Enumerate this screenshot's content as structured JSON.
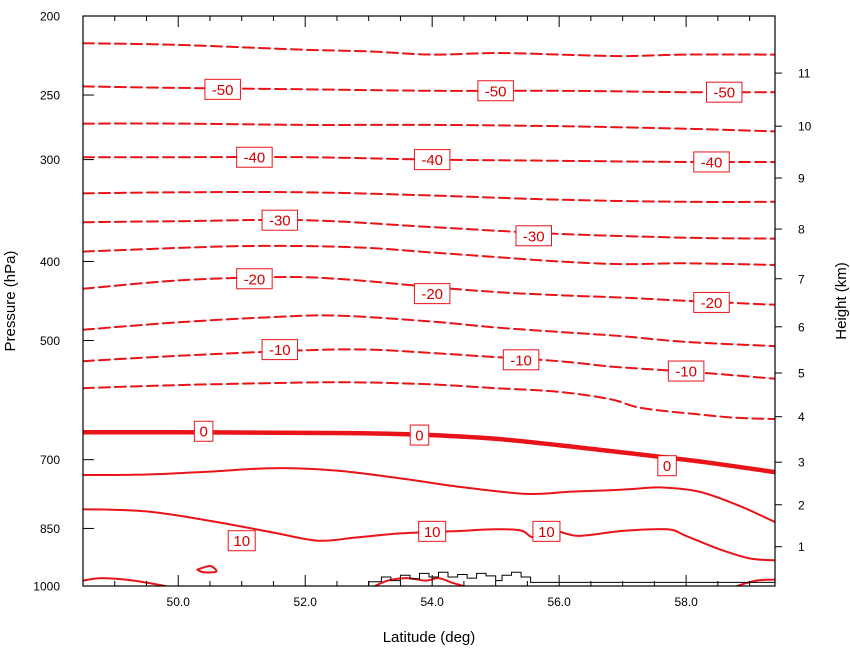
{
  "chart_data": {
    "type": "contour",
    "title": "",
    "xlabel": "Latitude (deg)",
    "ylabel_left": "Pressure (hPa)",
    "ylabel_right": "Height (km)",
    "xlim": [
      48.5,
      59.4
    ],
    "ylim_pressure": [
      1000,
      200
    ],
    "y_scale": "log",
    "x_ticks": [
      {
        "value": 50,
        "label": "50.0"
      },
      {
        "value": 52,
        "label": "52.0"
      },
      {
        "value": 54,
        "label": "54.0"
      },
      {
        "value": 56,
        "label": "56.0"
      },
      {
        "value": 58,
        "label": "58.0"
      }
    ],
    "pressure_ticks": [
      {
        "value": 200,
        "label": "200"
      },
      {
        "value": 250,
        "label": "250"
      },
      {
        "value": 300,
        "label": "300"
      },
      {
        "value": 400,
        "label": "400"
      },
      {
        "value": 500,
        "label": "500"
      },
      {
        "value": 700,
        "label": "700"
      },
      {
        "value": 850,
        "label": "850"
      },
      {
        "value": 1000,
        "label": "1000"
      }
    ],
    "height_ticks": [
      {
        "value": 1,
        "label": "1"
      },
      {
        "value": 2,
        "label": "2"
      },
      {
        "value": 3,
        "label": "3"
      },
      {
        "value": 4,
        "label": "4"
      },
      {
        "value": 5,
        "label": "5"
      },
      {
        "value": 6,
        "label": "6"
      },
      {
        "value": 7,
        "label": "7"
      },
      {
        "value": 8,
        "label": "8"
      },
      {
        "value": 9,
        "label": "9"
      },
      {
        "value": 10,
        "label": "10"
      },
      {
        "value": 11,
        "label": "11"
      }
    ],
    "height_tick_pressures": [
      {
        "km": 1,
        "p": 895
      },
      {
        "km": 2,
        "p": 795
      },
      {
        "km": 3,
        "p": 705
      },
      {
        "km": 4,
        "p": 620
      },
      {
        "km": 5,
        "p": 548
      },
      {
        "km": 6,
        "p": 481
      },
      {
        "km": 7,
        "p": 420
      },
      {
        "km": 8,
        "p": 365
      },
      {
        "km": 9,
        "p": 316
      },
      {
        "km": 10,
        "p": 273
      },
      {
        "km": 11,
        "p": 235
      }
    ],
    "line_color": "#e8141a",
    "contours": [
      {
        "level": -55,
        "style": "dashed",
        "points": [
          [
            48.5,
            216
          ],
          [
            50,
            217
          ],
          [
            52,
            220
          ],
          [
            53,
            221
          ],
          [
            54,
            223
          ],
          [
            55,
            222
          ],
          [
            56,
            223
          ],
          [
            57,
            224
          ],
          [
            58,
            223
          ],
          [
            59.4,
            223
          ]
        ]
      },
      {
        "level": -50,
        "style": "dashed",
        "points": [
          [
            48.5,
            244
          ],
          [
            50,
            245
          ],
          [
            52,
            246
          ],
          [
            54,
            247
          ],
          [
            56,
            247
          ],
          [
            58,
            248
          ],
          [
            59.4,
            248
          ]
        ]
      },
      {
        "level": -45,
        "style": "dashed",
        "points": [
          [
            48.5,
            271
          ],
          [
            50,
            271
          ],
          [
            52,
            272
          ],
          [
            54,
            272
          ],
          [
            56,
            273
          ],
          [
            58,
            275
          ],
          [
            59.4,
            277
          ]
        ]
      },
      {
        "level": -40,
        "style": "dashed",
        "points": [
          [
            48.5,
            298
          ],
          [
            50,
            298
          ],
          [
            52,
            298
          ],
          [
            54,
            300
          ],
          [
            56,
            301
          ],
          [
            58,
            302
          ],
          [
            59.4,
            302
          ]
        ]
      },
      {
        "level": -35,
        "style": "dashed",
        "points": [
          [
            48.5,
            330
          ],
          [
            50,
            329
          ],
          [
            52,
            329
          ],
          [
            54,
            332
          ],
          [
            56,
            336
          ],
          [
            58,
            338
          ],
          [
            59.4,
            338
          ]
        ]
      },
      {
        "level": -30,
        "style": "dashed",
        "points": [
          [
            48.5,
            358
          ],
          [
            50,
            357
          ],
          [
            52,
            356
          ],
          [
            54,
            363
          ],
          [
            56,
            370
          ],
          [
            58,
            374
          ],
          [
            59.4,
            375
          ]
        ]
      },
      {
        "level": -25,
        "style": "dashed",
        "points": [
          [
            48.5,
            389
          ],
          [
            50,
            385
          ],
          [
            51,
            383
          ],
          [
            52,
            383
          ],
          [
            53,
            385
          ],
          [
            54,
            390
          ],
          [
            55,
            395
          ],
          [
            56,
            400
          ],
          [
            57,
            403
          ],
          [
            58,
            402
          ],
          [
            59.4,
            404
          ]
        ]
      },
      {
        "level": -20,
        "style": "dashed",
        "points": [
          [
            48.5,
            432
          ],
          [
            50,
            422
          ],
          [
            51.5,
            418
          ],
          [
            52.5,
            420
          ],
          [
            54,
            430
          ],
          [
            55,
            436
          ],
          [
            56,
            440
          ],
          [
            57,
            443
          ],
          [
            58,
            447
          ],
          [
            59.4,
            452
          ]
        ]
      },
      {
        "level": -15,
        "style": "dashed",
        "points": [
          [
            48.5,
            485
          ],
          [
            50,
            475
          ],
          [
            51.5,
            468
          ],
          [
            52.5,
            466
          ],
          [
            54,
            474
          ],
          [
            55,
            482
          ],
          [
            56,
            488
          ],
          [
            57,
            494
          ],
          [
            58,
            502
          ],
          [
            59.4,
            508
          ]
        ]
      },
      {
        "level": -10,
        "style": "dashed",
        "points": [
          [
            48.5,
            530
          ],
          [
            50,
            522
          ],
          [
            52,
            514
          ],
          [
            53,
            513
          ],
          [
            54,
            518
          ],
          [
            55,
            524
          ],
          [
            56,
            530
          ],
          [
            56.8,
            538
          ],
          [
            57.4,
            542
          ],
          [
            58.3,
            548
          ],
          [
            59.4,
            557
          ]
        ]
      },
      {
        "level": -5,
        "style": "dashed",
        "points": [
          [
            48.5,
            572
          ],
          [
            50,
            567
          ],
          [
            52,
            563
          ],
          [
            53,
            563
          ],
          [
            54,
            566
          ],
          [
            55,
            572
          ],
          [
            56,
            578
          ],
          [
            56.8,
            590
          ],
          [
            57.3,
            605
          ],
          [
            58.2,
            616
          ],
          [
            58.8,
            622
          ],
          [
            59.4,
            624
          ]
        ]
      },
      {
        "level": 0,
        "style": "thick",
        "points": [
          [
            48.5,
            648
          ],
          [
            50,
            648
          ],
          [
            52,
            649
          ],
          [
            53,
            650
          ],
          [
            54,
            653
          ],
          [
            55,
            660
          ],
          [
            56,
            672
          ],
          [
            56.8,
            683
          ],
          [
            57.5,
            693
          ],
          [
            58.3,
            705
          ],
          [
            59.4,
            725
          ]
        ]
      },
      {
        "level": 5,
        "style": "solid",
        "points": [
          [
            48.5,
            731
          ],
          [
            49.5,
            730
          ],
          [
            50.5,
            724
          ],
          [
            51.5,
            717
          ],
          [
            52.5,
            722
          ],
          [
            53.5,
            738
          ],
          [
            54.5,
            757
          ],
          [
            55.5,
            771
          ],
          [
            56.2,
            766
          ],
          [
            56.8,
            763
          ],
          [
            57.2,
            760
          ],
          [
            57.6,
            757
          ],
          [
            58.2,
            766
          ],
          [
            58.8,
            795
          ],
          [
            59.4,
            835
          ]
        ]
      },
      {
        "level": 10,
        "style": "solid",
        "points": [
          [
            48.5,
            805
          ],
          [
            49.5,
            810
          ],
          [
            50.5,
            832
          ],
          [
            51.5,
            860
          ],
          [
            52.2,
            880
          ],
          [
            52.8,
            872
          ],
          [
            53.5,
            862
          ],
          [
            54.3,
            857
          ],
          [
            55,
            852
          ],
          [
            55.4,
            855
          ],
          [
            55.6,
            872
          ],
          [
            55.9,
            855
          ],
          [
            56.3,
            868
          ],
          [
            57,
            856
          ],
          [
            57.7,
            852
          ],
          [
            58,
            868
          ],
          [
            58.5,
            900
          ],
          [
            59,
            925
          ],
          [
            59.4,
            930
          ]
        ]
      },
      {
        "level": 15,
        "style": "solid",
        "points": [
          [
            48.5,
            985
          ],
          [
            48.8,
            978
          ],
          [
            49.3,
            985
          ],
          [
            49.8,
            1000
          ]
        ]
      },
      {
        "level": 15,
        "style": "solid",
        "points": [
          [
            50.3,
            955
          ],
          [
            50.5,
            945
          ],
          [
            50.6,
            960
          ],
          [
            50.4,
            962
          ],
          [
            50.3,
            955
          ]
        ]
      },
      {
        "level": 15,
        "style": "solid",
        "points": [
          [
            53.1,
            1000
          ],
          [
            53.3,
            985
          ],
          [
            53.6,
            978
          ],
          [
            53.9,
            985
          ],
          [
            54.1,
            978
          ],
          [
            54.3,
            990
          ],
          [
            54.5,
            1000
          ]
        ]
      },
      {
        "level": 15,
        "style": "solid",
        "points": [
          [
            58.8,
            1000
          ],
          [
            59.1,
            985
          ],
          [
            59.4,
            982
          ]
        ]
      }
    ],
    "contour_labels": [
      {
        "text": "-50",
        "lat": 50.7,
        "p": 246
      },
      {
        "text": "-50",
        "lat": 55.0,
        "p": 247
      },
      {
        "text": "-50",
        "lat": 58.6,
        "p": 248
      },
      {
        "text": "-40",
        "lat": 51.2,
        "p": 298
      },
      {
        "text": "-40",
        "lat": 54.0,
        "p": 300
      },
      {
        "text": "-40",
        "lat": 58.4,
        "p": 302
      },
      {
        "text": "-30",
        "lat": 51.6,
        "p": 356
      },
      {
        "text": "-30",
        "lat": 55.6,
        "p": 372
      },
      {
        "text": "-20",
        "lat": 51.2,
        "p": 420
      },
      {
        "text": "-20",
        "lat": 54.0,
        "p": 438
      },
      {
        "text": "-20",
        "lat": 58.4,
        "p": 449
      },
      {
        "text": "-10",
        "lat": 51.6,
        "p": 513
      },
      {
        "text": "-10",
        "lat": 55.4,
        "p": 528
      },
      {
        "text": "-10",
        "lat": 58.0,
        "p": 545
      },
      {
        "text": "0",
        "lat": 50.4,
        "p": 646
      },
      {
        "text": "0",
        "lat": 53.8,
        "p": 653
      },
      {
        "text": "0",
        "lat": 57.7,
        "p": 712
      },
      {
        "text": "10",
        "lat": 51.0,
        "p": 880
      },
      {
        "text": "10",
        "lat": 54.0,
        "p": 857
      },
      {
        "text": "10",
        "lat": 55.8,
        "p": 857
      }
    ],
    "topography": {
      "color": "#000000",
      "points": [
        [
          48.5,
          1000
        ],
        [
          52.8,
          1000
        ],
        [
          53.0,
          988
        ],
        [
          53.2,
          975
        ],
        [
          53.35,
          985
        ],
        [
          53.5,
          970
        ],
        [
          53.65,
          980
        ],
        [
          53.8,
          965
        ],
        [
          53.95,
          975
        ],
        [
          54.1,
          962
        ],
        [
          54.25,
          975
        ],
        [
          54.4,
          968
        ],
        [
          54.55,
          978
        ],
        [
          54.7,
          965
        ],
        [
          54.85,
          972
        ],
        [
          55.0,
          985
        ],
        [
          55.1,
          970
        ],
        [
          55.25,
          962
        ],
        [
          55.4,
          975
        ],
        [
          55.55,
          990
        ],
        [
          59.4,
          1000
        ]
      ]
    }
  }
}
